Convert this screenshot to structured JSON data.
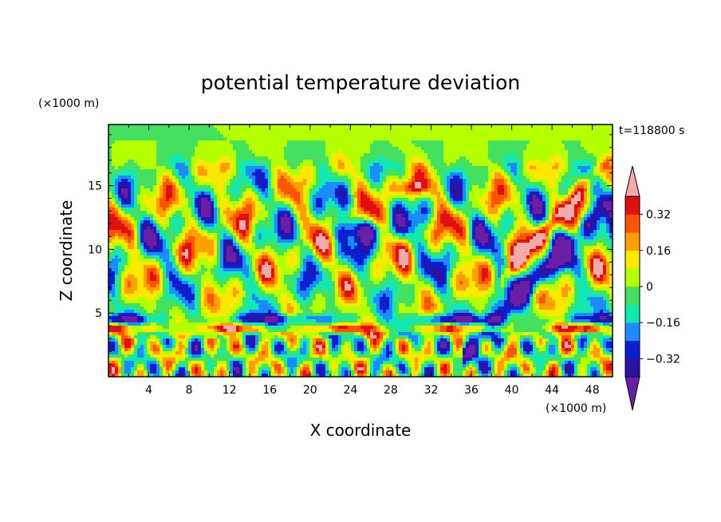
{
  "chart_data": {
    "type": "heatmap",
    "title": "potential temperature deviation",
    "xlabel": "X coordinate",
    "ylabel": "Z coordinate",
    "x_unit": "(×1000 m)",
    "y_unit": "(×1000 m)",
    "time_label": "t=118800 s",
    "xlim": [
      0,
      50
    ],
    "ylim": [
      0,
      19.8
    ],
    "x_ticks": [
      4,
      8,
      12,
      16,
      20,
      24,
      28,
      32,
      36,
      40,
      44,
      48
    ],
    "x_tick_labels": [
      "4",
      "8",
      "12",
      "16",
      "20",
      "24",
      "28",
      "32",
      "36",
      "40",
      "44",
      "48"
    ],
    "y_ticks": [
      5,
      10,
      15
    ],
    "y_tick_labels": [
      "5",
      "10",
      "15"
    ],
    "colorbar": {
      "levels": [
        -0.4,
        -0.32,
        -0.24,
        -0.16,
        -0.08,
        0,
        0.08,
        0.16,
        0.24,
        0.32,
        0.4
      ],
      "tick_values": [
        0.32,
        0.16,
        0,
        -0.16,
        -0.32
      ],
      "tick_labels": [
        "0.32",
        "0.16",
        "0",
        "−0.16",
        "−0.32"
      ],
      "colors": [
        "#6a1ea8",
        "#2d13a0",
        "#0b1fd0",
        "#1a8cff",
        "#12e8b0",
        "#44e060",
        "#b4ff00",
        "#ffe800",
        "#ffa000",
        "#ff5500",
        "#e01010",
        "#f5aaaa"
      ],
      "extend": "both"
    }
  }
}
